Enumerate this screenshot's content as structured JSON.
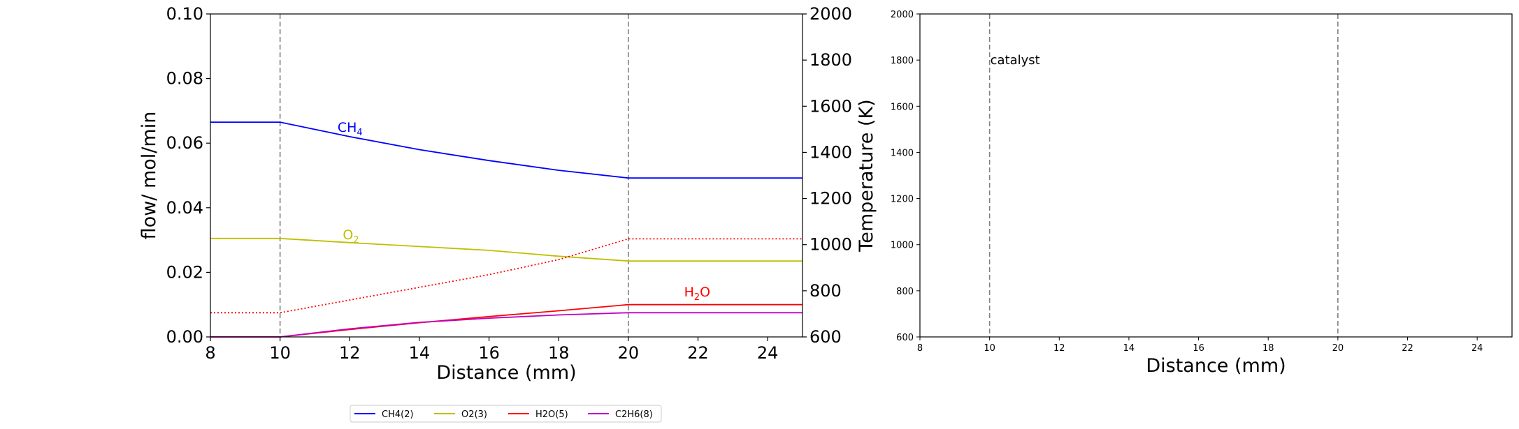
{
  "chart_data": [
    {
      "type": "line",
      "xlabel": "Distance (mm)",
      "ylabel": "flow/ mol/min",
      "y2label": "Temperature (K)",
      "xlim": [
        8,
        25
      ],
      "ylim": [
        0,
        0.1
      ],
      "y2lim": [
        600,
        2000
      ],
      "xticks": [
        "8",
        "10",
        "12",
        "14",
        "16",
        "18",
        "20",
        "22",
        "24"
      ],
      "yticks": [
        "0.00",
        "0.02",
        "0.04",
        "0.06",
        "0.08",
        "0.10"
      ],
      "y2ticks": [
        "600",
        "800",
        "1000",
        "1200",
        "1400",
        "1600",
        "1800",
        "2000"
      ],
      "vlines": [
        10,
        20
      ],
      "series": [
        {
          "name": "CH4(2)",
          "color": "#0000ff",
          "points": [
            [
              8,
              0.0665
            ],
            [
              10,
              0.0665
            ],
            [
              12,
              0.062
            ],
            [
              14,
              0.058
            ],
            [
              16,
              0.0546
            ],
            [
              18,
              0.0516
            ],
            [
              20,
              0.0492
            ],
            [
              25,
              0.0492
            ]
          ]
        },
        {
          "name": "O2(3)",
          "color": "#bfbf00",
          "points": [
            [
              8,
              0.0305
            ],
            [
              10,
              0.0305
            ],
            [
              12,
              0.0292
            ],
            [
              14,
              0.028
            ],
            [
              16,
              0.0268
            ],
            [
              18,
              0.025
            ],
            [
              20,
              0.0235
            ],
            [
              25,
              0.0235
            ]
          ]
        },
        {
          "name": "H2O(5)",
          "color": "#ff0000",
          "points": [
            [
              8,
              0.0
            ],
            [
              10,
              0.0
            ],
            [
              12,
              0.0023
            ],
            [
              14,
              0.0044
            ],
            [
              16,
              0.0063
            ],
            [
              18,
              0.0081
            ],
            [
              20,
              0.01
            ],
            [
              25,
              0.01
            ]
          ]
        },
        {
          "name": "C2H6(8)",
          "color": "#bf00bf",
          "points": [
            [
              8,
              0.0
            ],
            [
              10,
              0.0
            ],
            [
              12,
              0.0025
            ],
            [
              14,
              0.0045
            ],
            [
              16,
              0.0058
            ],
            [
              18,
              0.0068
            ],
            [
              20,
              0.0075
            ],
            [
              25,
              0.0075
            ]
          ]
        }
      ],
      "temperature": {
        "color": "#ff0000",
        "style": "dotted",
        "points": [
          [
            8,
            705
          ],
          [
            10,
            705
          ],
          [
            12,
            760
          ],
          [
            14,
            815
          ],
          [
            16,
            870
          ],
          [
            18,
            935
          ],
          [
            20,
            1025
          ],
          [
            25,
            1025
          ]
        ]
      },
      "annotations": [
        {
          "base": "CH",
          "sub": "4",
          "color": "#0000ff",
          "x": 11.65,
          "y": 0.0635
        },
        {
          "base": "O",
          "sub": "2",
          "color": "#bfbf00",
          "x": 11.8,
          "y": 0.0302
        },
        {
          "base": "H",
          "sub": "2",
          "tail": "O",
          "color": "#ff0000",
          "x": 21.6,
          "y": 0.0125
        }
      ],
      "legend": {
        "position": "below",
        "entries": [
          "CH4(2)",
          "O2(3)",
          "H2O(5)",
          "C2H6(8)"
        ]
      }
    },
    {
      "type": "line",
      "xlabel": "Distance (mm)",
      "xlim": [
        8,
        25
      ],
      "ylim": [
        600,
        2000
      ],
      "xticks": [
        "8",
        "10",
        "12",
        "14",
        "16",
        "18",
        "20",
        "22",
        "24"
      ],
      "yticks": [
        "600",
        "800",
        "1000",
        "1200",
        "1400",
        "1600",
        "1800",
        "2000"
      ],
      "vlines": [
        10,
        20
      ],
      "annotations": [
        {
          "text": "catalyst",
          "x": 10,
          "y": 1800
        }
      ]
    }
  ]
}
